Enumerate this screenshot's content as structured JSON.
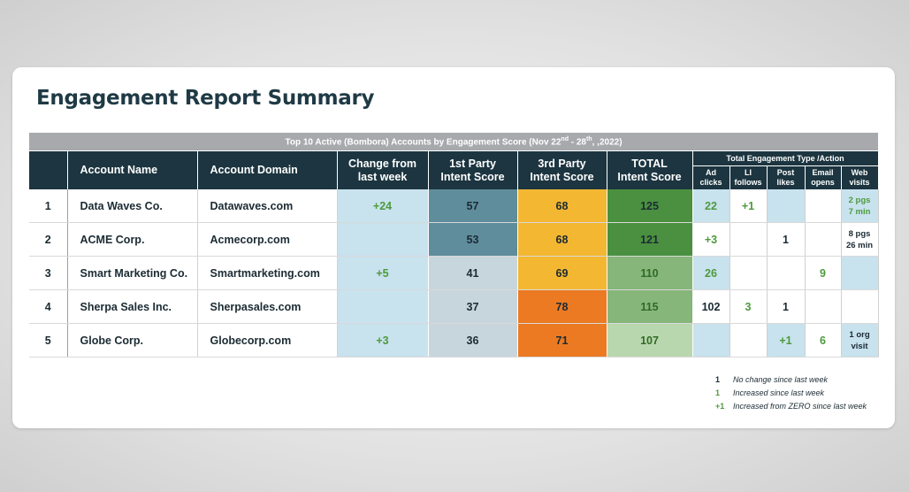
{
  "title": "Engagement Report Summary",
  "banner": {
    "pre": "Top 10 Active (Bombora) Accounts by Engagement Score (Nov 22",
    "sup1": "nd",
    "mid": " - 28",
    "sup2": "th",
    "post": ", ,2022)"
  },
  "headers": {
    "account_name": "Account Name",
    "account_domain": "Account Domain",
    "change_line1": "Change from",
    "change_line2": "last week",
    "p1_line1": "1st Party",
    "p1_line2": "Intent Score",
    "p3_line1": "3rd Party",
    "p3_line2": "Intent Score",
    "total_line1": "TOTAL",
    "total_line2": "Intent Score",
    "engagement_group": "Total Engagement Type /Action",
    "eng_cols": [
      {
        "l1": "Ad",
        "l2": "clicks"
      },
      {
        "l1": "LI",
        "l2": "follows"
      },
      {
        "l1": "Post",
        "l2": "likes"
      },
      {
        "l1": "Email",
        "l2": "opens"
      },
      {
        "l1": "Web",
        "l2": "visits"
      }
    ]
  },
  "rows": [
    {
      "num": "1",
      "name": "Data Waves Co.",
      "domain": "Datawaves.com",
      "change": "+24",
      "p1": "57",
      "p3": "68",
      "total": "125",
      "ad": "22",
      "li": "+1",
      "post": "",
      "email": "",
      "web1": "2 pgs",
      "web2": "7 min",
      "p1_color": "#5f8d9c",
      "p3_color": "#f4b731",
      "total_color": "#4a9040",
      "total_text": "#1b2b33"
    },
    {
      "num": "2",
      "name": "ACME Corp.",
      "domain": "Acmecorp.com",
      "change": "",
      "p1": "53",
      "p3": "68",
      "total": "121",
      "ad": "+3",
      "li": "",
      "post": "1",
      "email": "",
      "web1": "8 pgs",
      "web2": "26 min",
      "p1_color": "#5f8d9c",
      "p3_color": "#f4b731",
      "total_color": "#4a9040",
      "total_text": "#1b2b33"
    },
    {
      "num": "3",
      "name": "Smart Marketing Co.",
      "domain": "Smartmarketing.com",
      "change": "+5",
      "p1": "41",
      "p3": "69",
      "total": "110",
      "ad": "26",
      "li": "",
      "post": "",
      "email": "9",
      "web1": "",
      "web2": "",
      "p1_color": "#c7d6dc",
      "p3_color": "#f4b731",
      "total_color": "#86b67a",
      "total_text": "#2f6a25"
    },
    {
      "num": "4",
      "name": "Sherpa Sales Inc.",
      "domain": "Sherpasales.com",
      "change": "",
      "p1": "37",
      "p3": "78",
      "total": "115",
      "ad": "102",
      "li": "3",
      "post": "1",
      "email": "",
      "web1": "",
      "web2": "",
      "p1_color": "#c7d6dc",
      "p3_color": "#ec7a22",
      "total_color": "#86b67a",
      "total_text": "#2f6a25"
    },
    {
      "num": "5",
      "name": "Globe Corp.",
      "domain": "Globecorp.com",
      "change": "+3",
      "p1": "36",
      "p3": "71",
      "total": "107",
      "ad": "",
      "li": "",
      "post": "+1",
      "email": "6",
      "web1": "1 org",
      "web2": "visit",
      "p1_color": "#c7d6dc",
      "p3_color": "#ec7a22",
      "total_color": "#b9d7ae",
      "total_text": "#2f6a25"
    }
  ],
  "legend": [
    {
      "sym": "1",
      "text": "No change since last week",
      "green": false
    },
    {
      "sym": "1",
      "text": "Increased since last week",
      "green": true
    },
    {
      "sym": "+1",
      "text": "Increased from ZERO since last week",
      "green": true
    }
  ],
  "colors": {
    "header_bg": "#1c3540",
    "banner_bg": "#a7a9ac",
    "light_blue": "#c8e2ee",
    "green_text": "#4e9a3c"
  }
}
